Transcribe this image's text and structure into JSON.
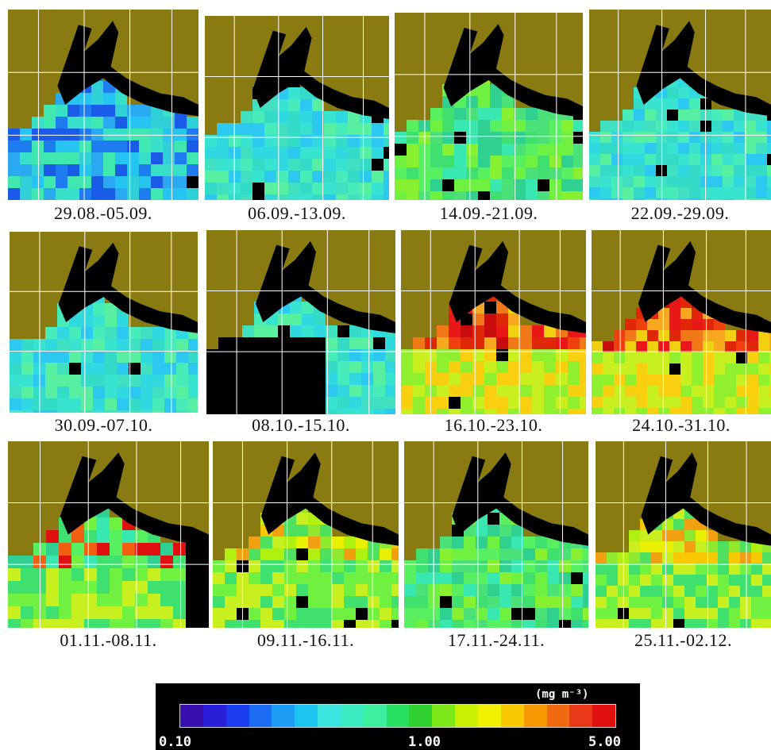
{
  "panels": [
    {
      "caption": "29.08.-05.09.",
      "scheme": "blue"
    },
    {
      "caption": "06.09.-13.09.",
      "scheme": "cyan"
    },
    {
      "caption": "14.09.-21.09.",
      "scheme": "green"
    },
    {
      "caption": "22.09.-29.09.",
      "scheme": "cyan"
    },
    {
      "caption": "30.09.-07.10.",
      "scheme": "cyan"
    },
    {
      "caption": "08.10.-15.10.",
      "scheme": "masked"
    },
    {
      "caption": "16.10.-23.10.",
      "scheme": "red"
    },
    {
      "caption": "24.10.-31.10.",
      "scheme": "red"
    },
    {
      "caption": "01.11.-08.11.",
      "scheme": "mixed"
    },
    {
      "caption": "09.11.-16.11.",
      "scheme": "yellow"
    },
    {
      "caption": "17.11.-24.11.",
      "scheme": "green"
    },
    {
      "caption": "25.11.-02.12.",
      "scheme": "yellow"
    }
  ],
  "legend": {
    "unit": "(mg m⁻³)",
    "min_label": "0.10",
    "mid_label": "1.00",
    "max_label": "5.00",
    "colors": [
      "#3a0fb0",
      "#2a1fd8",
      "#1a3cf0",
      "#1c6cf4",
      "#1c9cf4",
      "#1cc4f0",
      "#3ce4e0",
      "#38ecc0",
      "#3cf0a0",
      "#28e060",
      "#30d030",
      "#7ce818",
      "#c8f000",
      "#f0f000",
      "#f8c800",
      "#f89800",
      "#f06810",
      "#e83818",
      "#e01010"
    ],
    "bar_frame_color": "#000000"
  }
}
